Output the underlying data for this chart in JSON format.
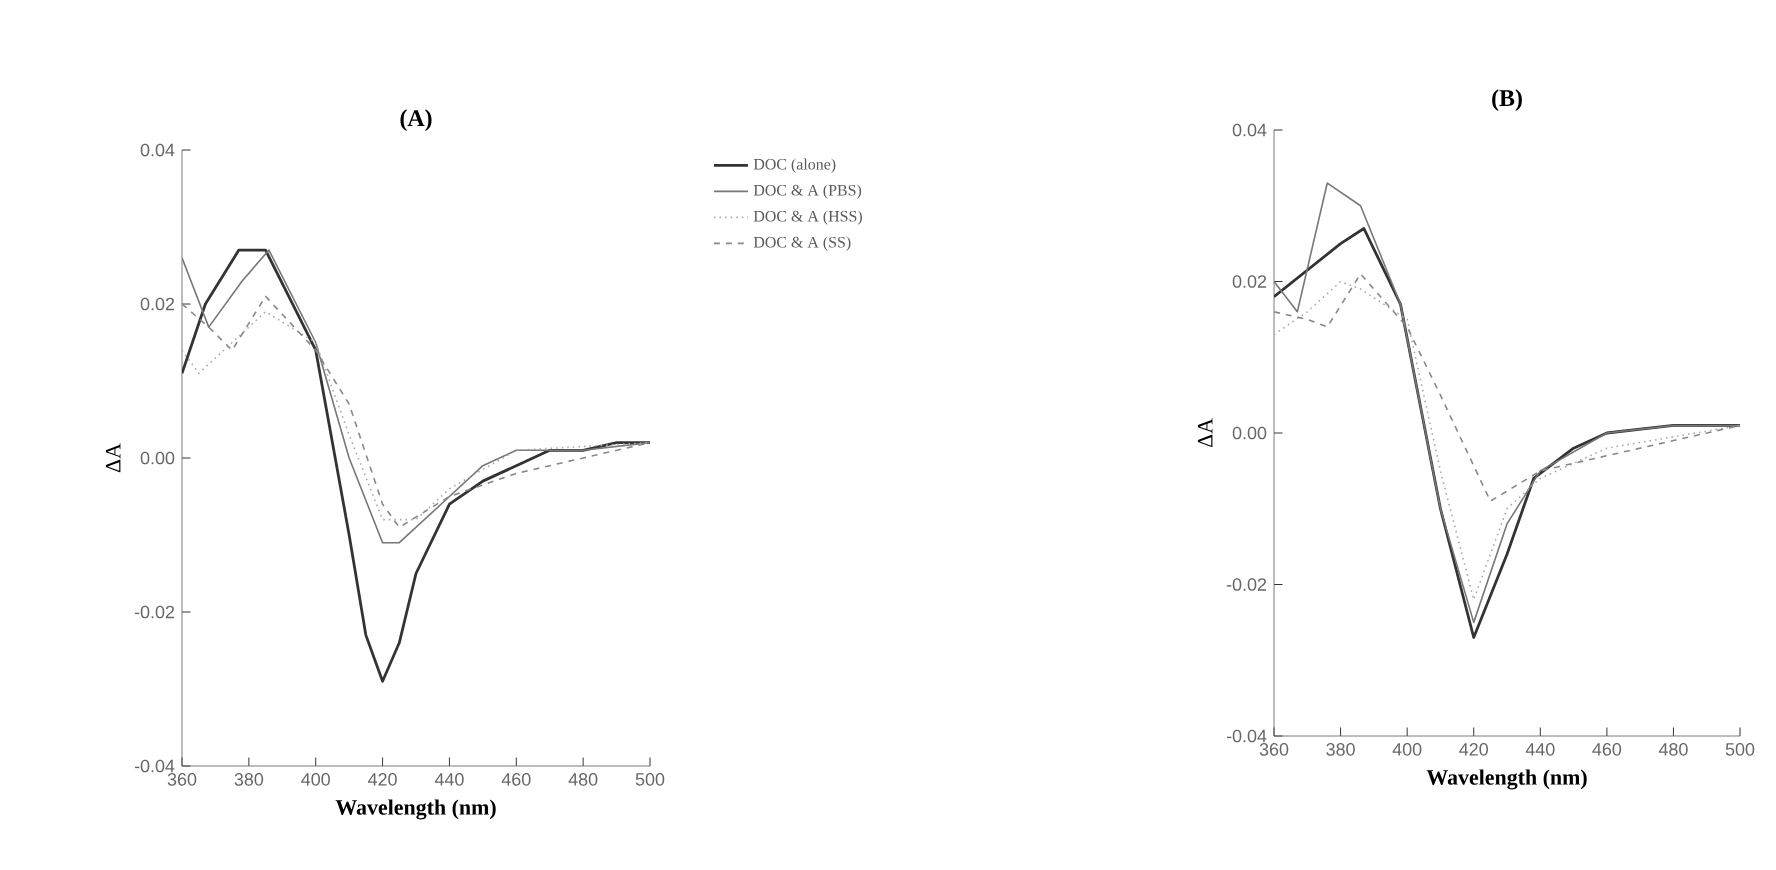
{
  "chart_data": [
    {
      "type": "line",
      "title": "(A)",
      "xlabel": "Wavelength (nm)",
      "ylabel": "ΔA",
      "xlim": [
        360,
        500
      ],
      "ylim": [
        -0.04,
        0.04
      ],
      "xticks": [
        360,
        380,
        400,
        420,
        440,
        460,
        480,
        500
      ],
      "yticks": [
        {
          "value": -0.04,
          "label": "-0.04"
        },
        {
          "value": -0.02,
          "label": "-0.02"
        },
        {
          "value": 0,
          "label": "0.00"
        },
        {
          "value": 0.02,
          "label": "0.02"
        },
        {
          "value": 0.04,
          "label": "0.04"
        }
      ],
      "legend": "top right",
      "grid": false,
      "series": [
        {
          "name": "DOC (alone)",
          "color": "#333333",
          "line_style": "solid",
          "x": [
            360,
            367,
            377,
            385,
            400,
            410,
            415,
            420,
            425,
            430,
            440,
            450,
            460,
            470,
            480,
            490,
            500
          ],
          "values": [
            0.011,
            0.02,
            0.027,
            0.027,
            0.014,
            -0.01,
            -0.023,
            -0.029,
            -0.024,
            -0.015,
            -0.006,
            -0.003,
            -0.001,
            0.001,
            0.001,
            0.002,
            0.002
          ]
        },
        {
          "name": "DOC & A (PBS)",
          "color": "#777777",
          "line_style": "solid",
          "x": [
            360,
            368,
            378,
            386,
            400,
            410,
            420,
            425,
            440,
            450,
            460,
            480,
            500
          ],
          "values": [
            0.026,
            0.017,
            0.023,
            0.027,
            0.015,
            0.0,
            -0.011,
            -0.011,
            -0.005,
            -0.001,
            0.001,
            0.001,
            0.002
          ]
        },
        {
          "name": "DOC & A (HSS)",
          "color": "#aaaaaa",
          "line_style": "dotted",
          "x": [
            360,
            365,
            375,
            385,
            400,
            410,
            420,
            430,
            440,
            460,
            500
          ],
          "values": [
            0.014,
            0.011,
            0.015,
            0.019,
            0.015,
            0.003,
            -0.008,
            -0.008,
            -0.004,
            0.001,
            0.002
          ]
        },
        {
          "name": "DOC & A (SS)",
          "color": "#888888",
          "line_style": "dashed",
          "x": [
            360,
            368,
            375,
            385,
            400,
            410,
            420,
            425,
            440,
            460,
            480,
            500
          ],
          "values": [
            0.02,
            0.017,
            0.014,
            0.021,
            0.014,
            0.007,
            -0.006,
            -0.009,
            -0.005,
            -0.002,
            0.0,
            0.002
          ]
        }
      ]
    },
    {
      "type": "line",
      "title": "(B)",
      "xlabel": "Wavelength (nm)",
      "ylabel": "ΔA",
      "xlim": [
        360,
        500
      ],
      "ylim": [
        -0.04,
        0.04
      ],
      "xticks": [
        360,
        380,
        400,
        420,
        440,
        460,
        480,
        500
      ],
      "yticks": [
        {
          "value": -0.04,
          "label": "-0.04"
        },
        {
          "value": -0.02,
          "label": "-0.02"
        },
        {
          "value": 0,
          "label": "0.00"
        },
        {
          "value": 0.02,
          "label": "0.02"
        },
        {
          "value": 0.04,
          "label": "0.04"
        }
      ],
      "legend": false,
      "grid": false,
      "series": [
        {
          "color": "#333333",
          "line_style": "solid",
          "x": [
            360,
            380,
            387,
            398,
            410,
            420,
            430,
            438,
            450,
            460,
            480,
            500
          ],
          "values": [
            0.018,
            0.025,
            0.027,
            0.017,
            -0.01,
            -0.027,
            -0.016,
            -0.006,
            -0.002,
            0.0,
            0.001,
            0.001
          ]
        },
        {
          "color": "#777777",
          "line_style": "solid",
          "x": [
            360,
            367,
            376,
            386,
            398,
            410,
            420,
            430,
            440,
            460,
            480,
            500
          ],
          "values": [
            0.02,
            0.016,
            0.033,
            0.03,
            0.017,
            -0.01,
            -0.025,
            -0.012,
            -0.005,
            0.0,
            0.001,
            0.001
          ]
        },
        {
          "color": "#aaaaaa",
          "line_style": "dotted",
          "x": [
            360,
            370,
            380,
            386,
            400,
            410,
            420,
            430,
            440,
            460,
            500
          ],
          "values": [
            0.013,
            0.016,
            0.02,
            0.019,
            0.015,
            -0.005,
            -0.022,
            -0.01,
            -0.006,
            -0.002,
            0.001
          ]
        },
        {
          "color": "#888888",
          "line_style": "dashed",
          "x": [
            360,
            370,
            376,
            386,
            400,
            410,
            425,
            440,
            460,
            480,
            500
          ],
          "values": [
            0.016,
            0.015,
            0.014,
            0.021,
            0.014,
            0.005,
            -0.009,
            -0.005,
            -0.003,
            -0.001,
            0.001
          ]
        }
      ]
    }
  ]
}
